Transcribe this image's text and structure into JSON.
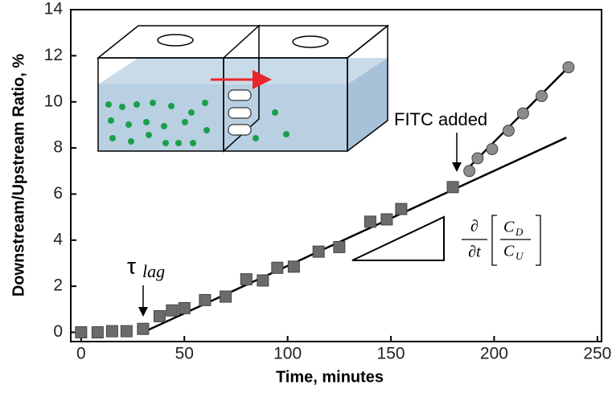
{
  "chart_data": {
    "type": "scatter",
    "x_label": "Time, minutes",
    "y_label": "Downstream/Upstream Ratio, %",
    "xlim": [
      -5,
      252
    ],
    "ylim": [
      -0.4,
      14
    ],
    "xticks": [
      0,
      50,
      100,
      150,
      200,
      250
    ],
    "yticks": [
      0,
      2,
      4,
      6,
      8,
      10,
      12,
      14
    ],
    "series": [
      {
        "marker": "square",
        "color": "#6b6b6b",
        "x": [
          0,
          8,
          15,
          22,
          30,
          38,
          44,
          50,
          60,
          70,
          80,
          88,
          95,
          103,
          115,
          125,
          140,
          148,
          155,
          180
        ],
        "values": [
          0,
          0,
          0.05,
          0.05,
          0.15,
          0.7,
          0.95,
          1.05,
          1.4,
          1.55,
          2.3,
          2.25,
          2.8,
          2.85,
          3.5,
          3.7,
          4.8,
          4.9,
          5.35,
          6.3
        ]
      },
      {
        "marker": "circle",
        "color": "#8c8c8c",
        "x": [
          188,
          192,
          199,
          207,
          214,
          223,
          236
        ],
        "values": [
          7.0,
          7.55,
          7.95,
          8.75,
          9.5,
          10.25,
          11.5
        ]
      }
    ],
    "fit_lines": [
      {
        "color": "#000000",
        "x": [
          30,
          235
        ],
        "values": [
          0,
          8.45
        ]
      },
      {
        "color": "#000000",
        "x": [
          186,
          237
        ],
        "values": [
          7.0,
          11.6
        ]
      }
    ],
    "annotations": {
      "fitc": "FITC added",
      "tau": "τ",
      "tau_sub": "lag",
      "formula": {
        "num": "∂",
        "den": "∂t",
        "c_top": "C",
        "c_top_sub": "D",
        "c_bottom": "C",
        "c_bottom_sub": "U"
      }
    }
  }
}
